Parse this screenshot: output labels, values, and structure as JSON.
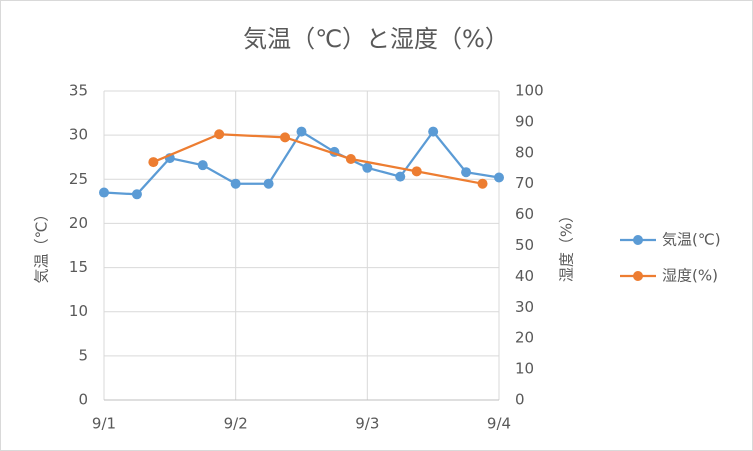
{
  "chart_data": {
    "type": "line",
    "title": "気温（℃）と湿度（%）",
    "y_label": "気温（℃）",
    "y2_label": "湿度（%）",
    "xlim": [
      0,
      3
    ],
    "xticks": [
      {
        "value": 0,
        "label": "9/1"
      },
      {
        "value": 1,
        "label": "9/2"
      },
      {
        "value": 2,
        "label": "9/3"
      },
      {
        "value": 3,
        "label": "9/4"
      }
    ],
    "ylim": [
      0,
      35
    ],
    "yticks": [
      0,
      5,
      10,
      15,
      20,
      25,
      30,
      35
    ],
    "y2lim": [
      0,
      100
    ],
    "y2ticks": [
      0,
      10,
      20,
      30,
      40,
      50,
      60,
      70,
      80,
      90,
      100
    ],
    "grid": true,
    "legend": "right",
    "series": [
      {
        "name": "気温(℃)",
        "color": "#5b9bd5",
        "x": [
          0,
          0.25,
          0.5,
          0.75,
          1,
          1.25,
          1.5,
          1.75,
          2,
          2.25,
          2.5,
          2.75,
          3
        ],
        "values": [
          23.5,
          23.3,
          27.4,
          26.6,
          24.5,
          24.5,
          30.4,
          28.1,
          26.3,
          25.3,
          30.4,
          25.8,
          25.2
        ]
      },
      {
        "name": "湿度(%)",
        "color": "#ed7d31",
        "axis": "y2",
        "x": [
          0.375,
          0.875,
          1.375,
          1.875,
          2.375,
          2.875
        ],
        "values": [
          77,
          86,
          85,
          78,
          74,
          70
        ]
      }
    ]
  }
}
